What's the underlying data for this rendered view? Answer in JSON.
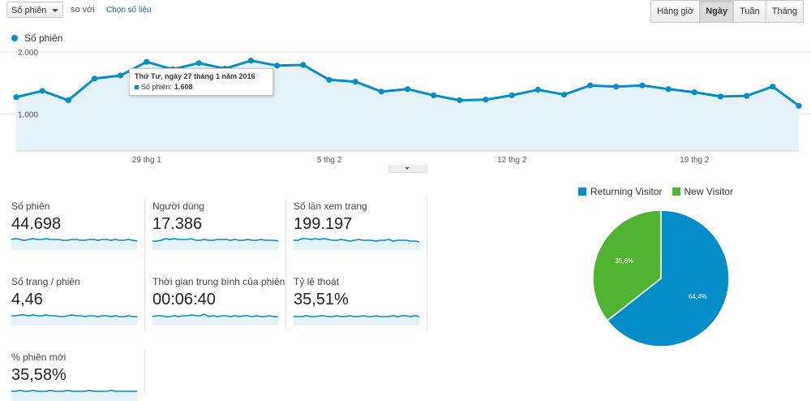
{
  "toolbar": {
    "metric": "Số phiên",
    "compare": "so với",
    "choose_metric": "Chọn số liệu",
    "periods": [
      "Hàng giờ",
      "Ngày",
      "Tuần",
      "Tháng"
    ],
    "active_period": "Ngày"
  },
  "legend": {
    "series": "Số phiên"
  },
  "tooltip": {
    "date": "Thứ Tư, ngày 27 tháng 1 năm 2016",
    "label": "Số phiên:",
    "value": "1.608"
  },
  "colors": {
    "series": "#058dc7",
    "fill": "#e5f3f9",
    "new_visitor": "#50b432"
  },
  "chart_data": [
    {
      "type": "area",
      "series": [
        {
          "name": "Số phiên",
          "values": [
            1270,
            1370,
            1220,
            1570,
            1620,
            1840,
            1720,
            1820,
            1730,
            1860,
            1780,
            1790,
            1550,
            1520,
            1360,
            1400,
            1300,
            1220,
            1230,
            1300,
            1390,
            1310,
            1460,
            1440,
            1460,
            1400,
            1350,
            1280,
            1290,
            1440,
            1130
          ]
        }
      ],
      "ylim": [
        0,
        2000
      ],
      "y_ticks": [
        "1.000",
        "2.000"
      ],
      "x_ticks": [
        "29 thg 1",
        "5 thg 2",
        "12 thg 2",
        "19 thg 2"
      ]
    },
    {
      "type": "pie",
      "labels": [
        "Returning Visitor",
        "New Visitor"
      ],
      "values": [
        64.4,
        35.6
      ],
      "display": [
        "64,4%",
        "35,6%"
      ],
      "colors": [
        "#058dc7",
        "#50b432"
      ]
    }
  ],
  "metrics": [
    {
      "label": "Số phiên",
      "value": "44.698"
    },
    {
      "label": "Người dùng",
      "value": "17.386"
    },
    {
      "label": "Số lần xem trang",
      "value": "199.197"
    },
    {
      "label": "Số trang / phiên",
      "value": "4,46"
    },
    {
      "label": "Thời gian trung bình của phiên",
      "value": "00:06:40"
    },
    {
      "label": "Tỷ lệ thoát",
      "value": "35,51%"
    },
    {
      "label": "% phiên mới",
      "value": "35,58%"
    }
  ]
}
